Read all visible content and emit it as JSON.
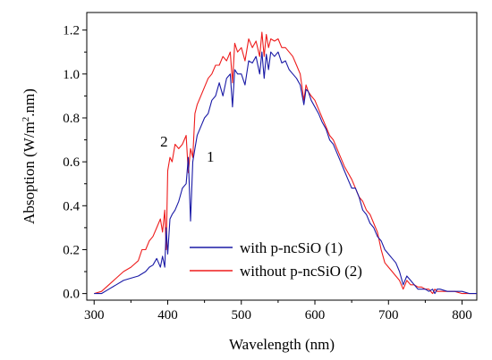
{
  "chart_data": {
    "type": "line",
    "title": "",
    "xlabel": "Wavelength (nm)",
    "ylabel_parts": {
      "before": "Absoption (W/m",
      "sup": "2",
      "after": ".nm)"
    },
    "xlim": [
      290,
      820
    ],
    "ylim": [
      -0.03,
      1.28
    ],
    "xticks": [
      300,
      400,
      500,
      600,
      700,
      800
    ],
    "yticks": [
      0.0,
      0.2,
      0.4,
      0.6,
      0.8,
      1.0,
      1.2
    ],
    "ytick_labels": [
      "0.0",
      "0.2",
      "0.4",
      "0.6",
      "0.8",
      "1.0",
      "1.2"
    ],
    "grid": false,
    "legend_position": "bottom-center",
    "series": [
      {
        "name": "with p-ncSiO (1)",
        "color": "#1a1aa6",
        "x": [
          300,
          310,
          320,
          330,
          340,
          350,
          360,
          370,
          375,
          380,
          385,
          390,
          393,
          396,
          398,
          400,
          403,
          406,
          410,
          415,
          420,
          425,
          428,
          431,
          434,
          437,
          440,
          445,
          450,
          455,
          460,
          465,
          470,
          475,
          480,
          485,
          488,
          491,
          495,
          500,
          505,
          510,
          515,
          520,
          525,
          528,
          531,
          534,
          537,
          540,
          545,
          550,
          555,
          560,
          565,
          570,
          575,
          580,
          585,
          588,
          591,
          595,
          600,
          605,
          610,
          615,
          620,
          625,
          630,
          635,
          640,
          645,
          650,
          655,
          660,
          665,
          670,
          675,
          680,
          685,
          690,
          695,
          700,
          705,
          710,
          715,
          720,
          725,
          730,
          735,
          740,
          745,
          750,
          755,
          760,
          763,
          766,
          770,
          780,
          790,
          800,
          810,
          820
        ],
        "y": [
          0.0,
          0.0,
          0.02,
          0.04,
          0.06,
          0.07,
          0.08,
          0.1,
          0.12,
          0.13,
          0.16,
          0.12,
          0.17,
          0.12,
          0.3,
          0.18,
          0.34,
          0.36,
          0.38,
          0.42,
          0.48,
          0.5,
          0.62,
          0.33,
          0.6,
          0.66,
          0.72,
          0.76,
          0.8,
          0.82,
          0.88,
          0.9,
          0.96,
          0.9,
          0.98,
          1.0,
          0.85,
          1.02,
          1.0,
          1.0,
          0.95,
          1.06,
          1.05,
          1.08,
          1.0,
          1.1,
          0.98,
          1.09,
          1.02,
          1.1,
          1.08,
          1.1,
          1.05,
          1.06,
          1.02,
          1.0,
          0.98,
          0.95,
          0.86,
          0.93,
          0.92,
          0.88,
          0.85,
          0.82,
          0.78,
          0.75,
          0.7,
          0.68,
          0.64,
          0.6,
          0.56,
          0.52,
          0.48,
          0.48,
          0.44,
          0.38,
          0.36,
          0.32,
          0.3,
          0.26,
          0.24,
          0.2,
          0.18,
          0.16,
          0.14,
          0.1,
          0.04,
          0.08,
          0.06,
          0.04,
          0.02,
          0.02,
          0.02,
          0.01,
          0.02,
          0.0,
          0.02,
          0.02,
          0.01,
          0.01,
          0.01,
          0.0,
          0.0
        ]
      },
      {
        "name": "without p-ncSiO (2)",
        "color": "#ee1c1c",
        "x": [
          300,
          310,
          320,
          330,
          340,
          350,
          360,
          365,
          370,
          375,
          380,
          385,
          390,
          393,
          396,
          398,
          400,
          403,
          406,
          410,
          415,
          420,
          425,
          428,
          431,
          434,
          437,
          440,
          445,
          450,
          455,
          460,
          465,
          470,
          475,
          480,
          485,
          488,
          491,
          495,
          500,
          505,
          510,
          515,
          520,
          525,
          528,
          531,
          534,
          537,
          540,
          545,
          550,
          555,
          560,
          565,
          570,
          575,
          580,
          585,
          588,
          591,
          595,
          600,
          605,
          610,
          615,
          620,
          625,
          630,
          635,
          640,
          645,
          650,
          655,
          660,
          665,
          670,
          675,
          680,
          685,
          690,
          695,
          700,
          705,
          710,
          715,
          720,
          725,
          730,
          735,
          740,
          745,
          750,
          755,
          760,
          763,
          766,
          770,
          780,
          790,
          800,
          810,
          820
        ],
        "y": [
          0.0,
          0.01,
          0.04,
          0.07,
          0.1,
          0.12,
          0.15,
          0.2,
          0.2,
          0.24,
          0.26,
          0.3,
          0.34,
          0.28,
          0.38,
          0.2,
          0.56,
          0.62,
          0.6,
          0.68,
          0.66,
          0.68,
          0.72,
          0.55,
          0.66,
          0.62,
          0.82,
          0.86,
          0.9,
          0.94,
          0.98,
          1.0,
          1.04,
          1.04,
          1.08,
          1.06,
          1.1,
          0.96,
          1.14,
          1.1,
          1.12,
          1.06,
          1.16,
          1.12,
          1.15,
          1.08,
          1.19,
          1.08,
          1.18,
          1.12,
          1.16,
          1.15,
          1.16,
          1.12,
          1.12,
          1.1,
          1.08,
          1.04,
          1.0,
          0.88,
          0.95,
          0.92,
          0.9,
          0.88,
          0.84,
          0.8,
          0.76,
          0.72,
          0.7,
          0.66,
          0.62,
          0.58,
          0.55,
          0.52,
          0.48,
          0.44,
          0.42,
          0.38,
          0.36,
          0.32,
          0.28,
          0.2,
          0.14,
          0.12,
          0.1,
          0.08,
          0.06,
          0.02,
          0.06,
          0.04,
          0.04,
          0.03,
          0.03,
          0.02,
          0.02,
          0.0,
          0.02,
          0.01,
          0.01,
          0.01,
          0.01,
          0.0,
          0.0,
          0.0
        ]
      }
    ],
    "annotations": [
      {
        "text": "2",
        "x": 395,
        "y": 0.67
      },
      {
        "text": "1",
        "x": 458,
        "y": 0.6
      }
    ]
  }
}
